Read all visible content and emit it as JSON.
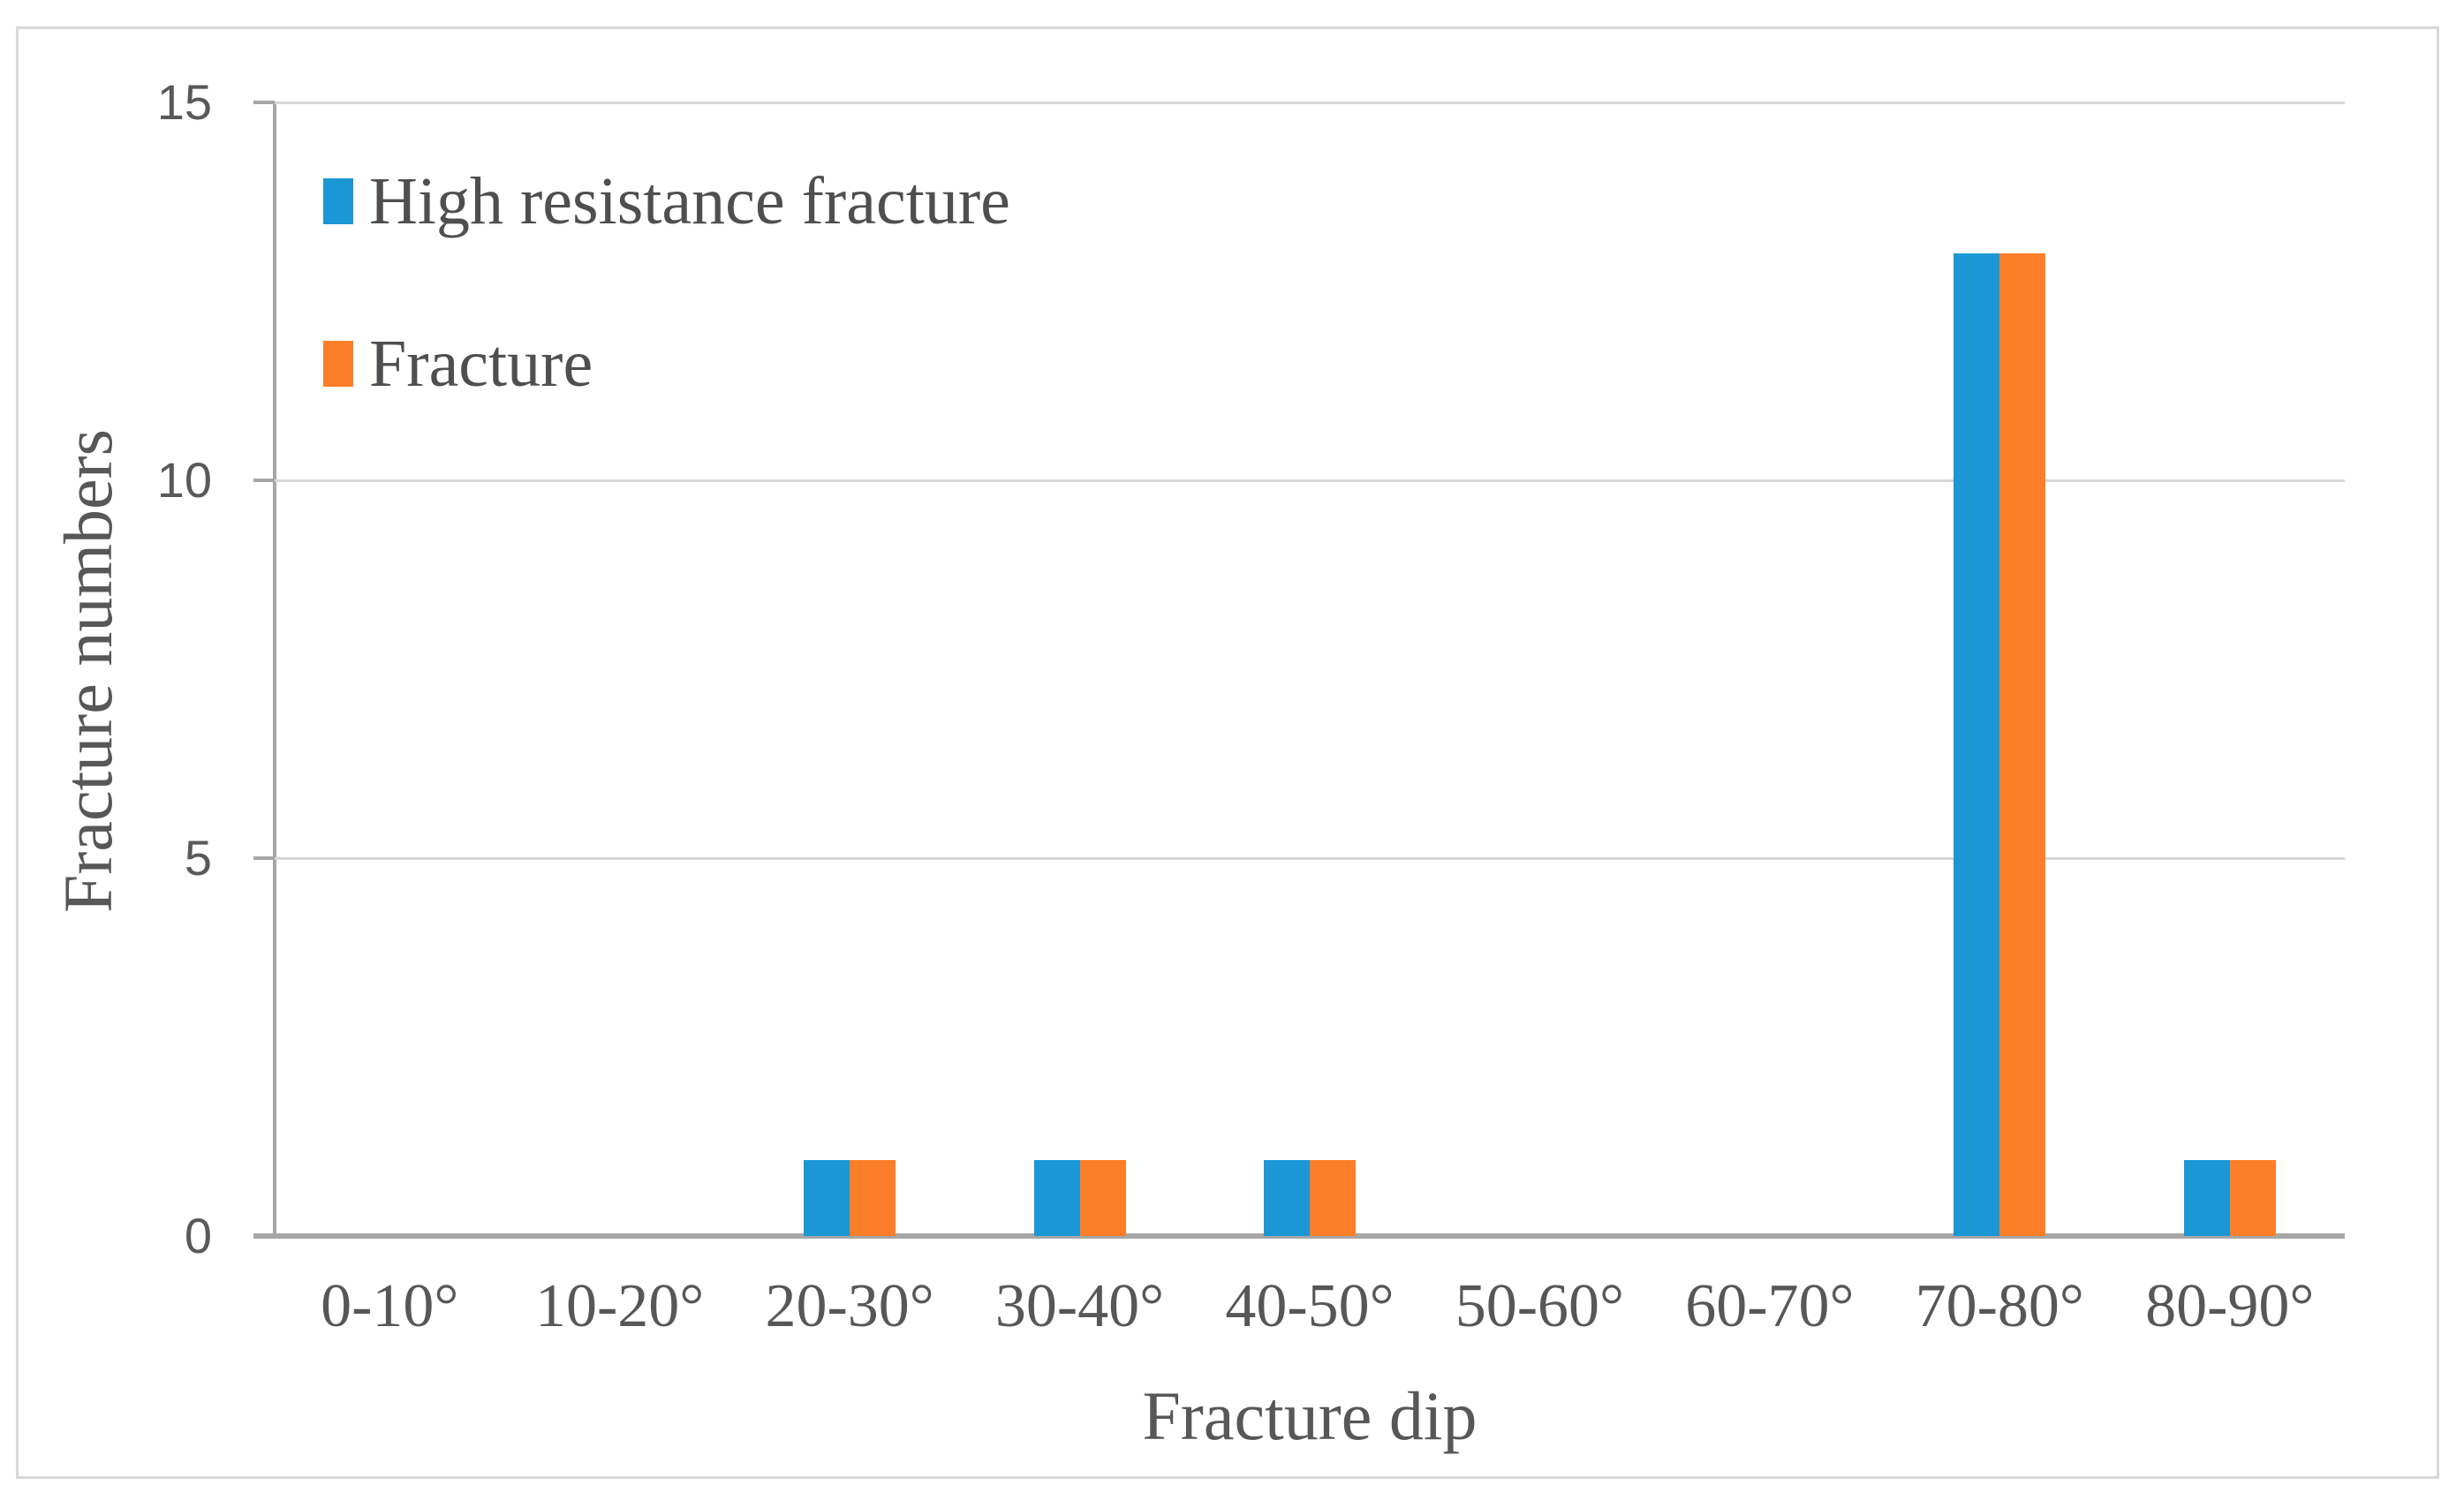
{
  "chart_data": {
    "type": "bar",
    "title": "",
    "xlabel": "Fracture dip",
    "ylabel": "Fracture numbers",
    "categories": [
      "0-10°",
      "10-20°",
      "20-30°",
      "30-40°",
      "40-50°",
      "50-60°",
      "60-70°",
      "70-80°",
      "80-90°"
    ],
    "series": [
      {
        "name": "High resistance fracture",
        "color": "#1B97D5",
        "values": [
          0,
          0,
          1,
          1,
          1,
          0,
          0,
          13,
          1
        ]
      },
      {
        "name": "Fracture",
        "color": "#FD7E28",
        "values": [
          0,
          0,
          1,
          1,
          1,
          0,
          0,
          13,
          1
        ]
      }
    ],
    "ylim": [
      0,
      15
    ],
    "yticks": [
      0,
      5,
      10,
      15
    ],
    "grid": true,
    "legend_position": "top-left-inside"
  },
  "colors": {
    "series_blue": "#1B97D5",
    "series_orange": "#FD7E28",
    "axis_line": "#A6A6A6",
    "gridline": "#D6D6D6",
    "frame_border": "#D8D8D8",
    "label_text": "#575757",
    "tick_text": "#595959"
  }
}
